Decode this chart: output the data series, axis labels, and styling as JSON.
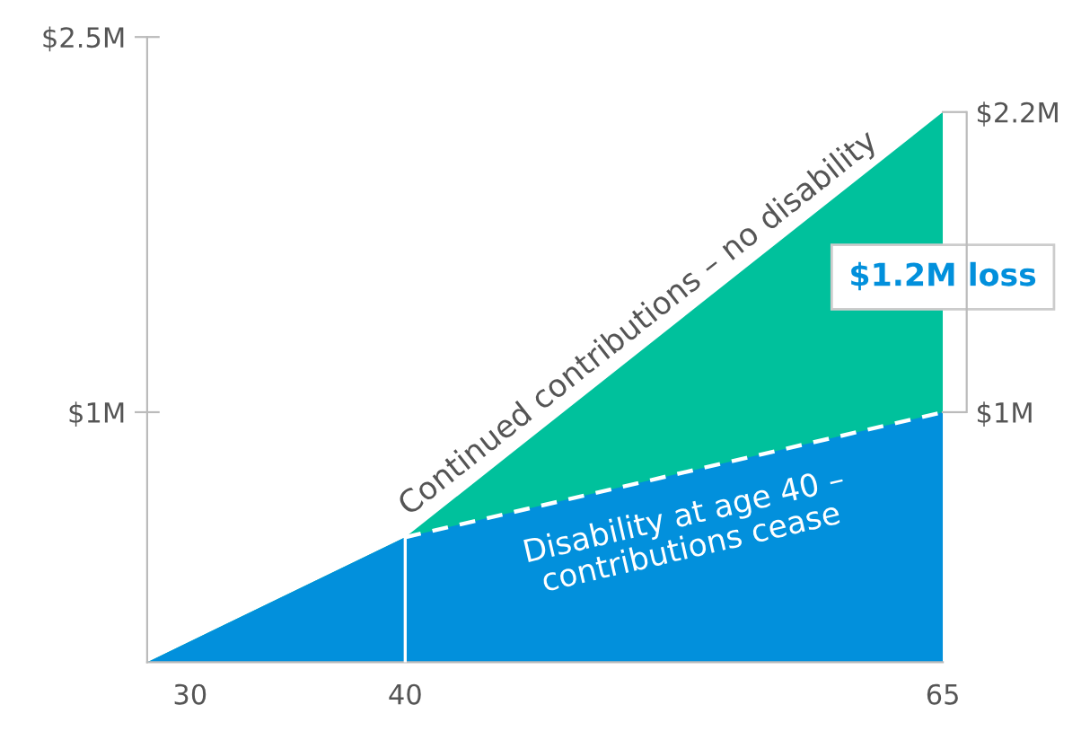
{
  "chart_data": {
    "type": "area",
    "x": [
      28,
      40,
      65
    ],
    "series": [
      {
        "color": "#00c19c",
        "values": [
          0,
          0.5,
          2.2
        ]
      },
      {
        "color": "#0290dc",
        "values": [
          0,
          0.5,
          1.0
        ],
        "line_style": "dashed"
      }
    ],
    "xlim": [
      28,
      65
    ],
    "xticks": [
      30,
      40,
      65
    ],
    "ylim": [
      0,
      2.5
    ],
    "yticks": [
      {
        "value": 1,
        "label": "$1M"
      },
      {
        "value": 2.5,
        "label": "$2.5M"
      }
    ],
    "y2lim": [
      0,
      2.5
    ],
    "y2ticks": [
      {
        "value": 1,
        "label": "$1M"
      },
      {
        "value": 2.2,
        "label": "$2.2M"
      }
    ],
    "ref_lines": [
      {
        "axis": "x",
        "value": 40,
        "color": "#ffffff"
      }
    ],
    "annotations": [
      "Continued contributions – no disability",
      "Disability at age 40 –\ncontributions cease",
      {
        "text": "$1.2M loss",
        "x": 65,
        "y": 1.54
      }
    ],
    "grid": false
  }
}
